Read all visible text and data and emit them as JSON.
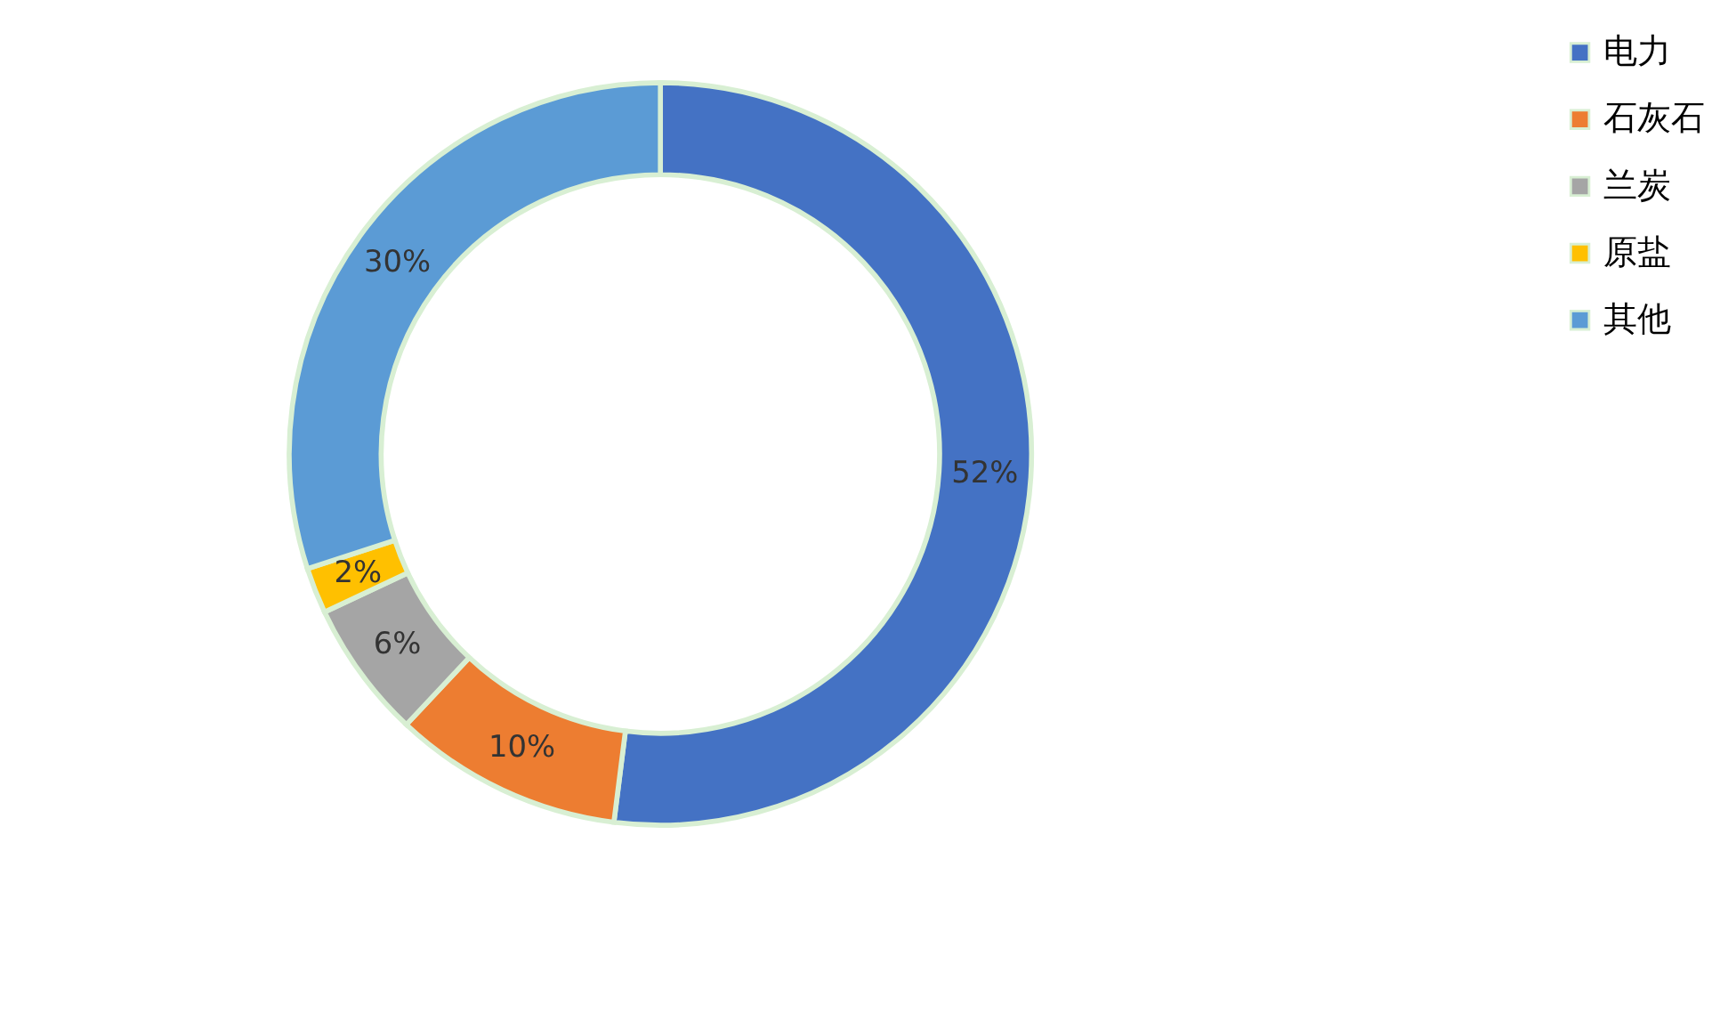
{
  "chart_data": {
    "type": "donut",
    "categories": [
      "电力",
      "石灰石",
      "兰炭",
      "原盐",
      "其他"
    ],
    "values": [
      52,
      10,
      6,
      2,
      30
    ],
    "colors": [
      "#4472c4",
      "#ed7d31",
      "#a5a5a5",
      "#ffc000",
      "#5b9bd5"
    ],
    "value_labels": [
      "52%",
      "10%",
      "6%",
      "2%",
      "30%"
    ],
    "legend": "right"
  }
}
